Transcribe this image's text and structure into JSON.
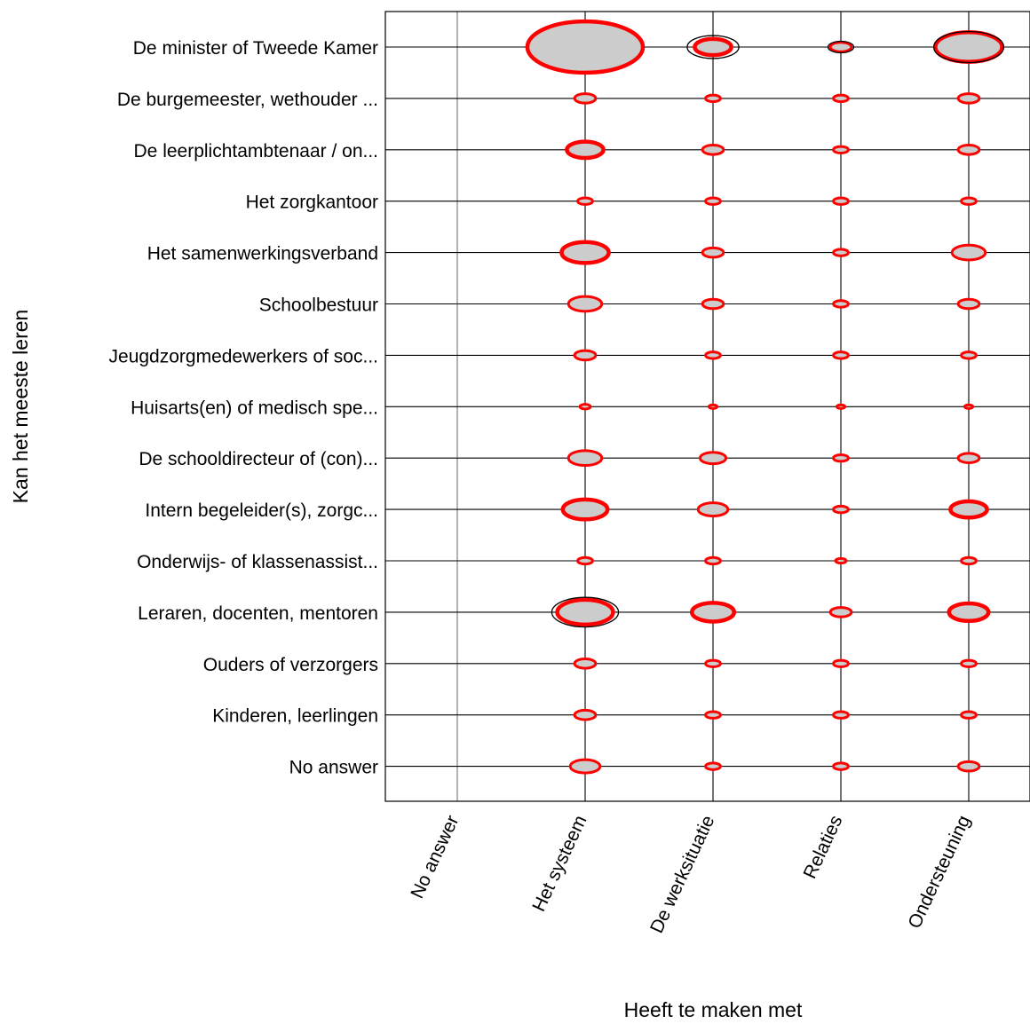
{
  "chart_data": {
    "type": "scatter",
    "xlabel": "Heeft te maken met",
    "ylabel": "Kan het meeste leren",
    "x_categories": [
      "No answer",
      "Het systeem",
      "De werksituatie",
      "Relaties",
      "Ondersteuning"
    ],
    "y_categories": [
      "De minister of Tweede Kamer",
      "De burgemeester, wethouder ...",
      "De leerplichtambtenaar / on...",
      "Het zorgkantoor",
      "Het samenwerkingsverband",
      "Schoolbestuur",
      "Jeugdzorgmedewerkers of soc...",
      "Huisarts(en) of medisch spe...",
      "De schooldirecteur of (con)...",
      "Intern begeleider(s), zorgc...",
      "Onderwijs- of klassenassist...",
      "Leraren, docenten, mentoren",
      "Ouders of verzorgers",
      "Kinderen, leerlingen",
      "No answer"
    ],
    "legend": "none",
    "grid": true,
    "colors": {
      "observed": "#ff0000",
      "expected": "#000000",
      "fill": "#cccccc"
    },
    "points": [
      {
        "x": "Het systeem",
        "y": "De minister of Tweede Kamer",
        "observed": 60,
        "expected": 45
      },
      {
        "x": "De werksituatie",
        "y": "De minister of Tweede Kamer",
        "observed": 6,
        "expected": 12
      },
      {
        "x": "Relaties",
        "y": "De minister of Tweede Kamer",
        "observed": 2,
        "expected": 3
      },
      {
        "x": "Ondersteuning",
        "y": "De minister of Tweede Kamer",
        "observed": 20,
        "expected": 22
      },
      {
        "x": "Het systeem",
        "y": "De burgemeester, wethouder ...",
        "observed": 2,
        "expected": 1
      },
      {
        "x": "De werksituatie",
        "y": "De burgemeester, wethouder ...",
        "observed": 1,
        "expected": 0.5
      },
      {
        "x": "Relaties",
        "y": "De burgemeester, wethouder ...",
        "observed": 1,
        "expected": 0.3
      },
      {
        "x": "Ondersteuning",
        "y": "De burgemeester, wethouder ...",
        "observed": 2,
        "expected": 1
      },
      {
        "x": "Het systeem",
        "y": "De leerplichtambtenaar / on...",
        "observed": 6,
        "expected": 5
      },
      {
        "x": "De werksituatie",
        "y": "De leerplichtambtenaar / on...",
        "observed": 2,
        "expected": 2
      },
      {
        "x": "Relaties",
        "y": "De leerplichtambtenaar / on...",
        "observed": 1,
        "expected": 0.5
      },
      {
        "x": "Ondersteuning",
        "y": "De leerplichtambtenaar / on...",
        "observed": 2,
        "expected": 2
      },
      {
        "x": "Het systeem",
        "y": "Het zorgkantoor",
        "observed": 1,
        "expected": 0.5
      },
      {
        "x": "De werksituatie",
        "y": "Het zorgkantoor",
        "observed": 1,
        "expected": 0.3
      },
      {
        "x": "Relaties",
        "y": "Het zorgkantoor",
        "observed": 1,
        "expected": 0.2
      },
      {
        "x": "Ondersteuning",
        "y": "Het zorgkantoor",
        "observed": 1,
        "expected": 0.5
      },
      {
        "x": "Het systeem",
        "y": "Het samenwerkingsverband",
        "observed": 10,
        "expected": 7
      },
      {
        "x": "De werksituatie",
        "y": "Het samenwerkingsverband",
        "observed": 2,
        "expected": 2
      },
      {
        "x": "Relaties",
        "y": "Het samenwerkingsverband",
        "observed": 1,
        "expected": 0.5
      },
      {
        "x": "Ondersteuning",
        "y": "Het samenwerkingsverband",
        "observed": 5,
        "expected": 4
      },
      {
        "x": "Het systeem",
        "y": "Schoolbestuur",
        "observed": 5,
        "expected": 4
      },
      {
        "x": "De werksituatie",
        "y": "Schoolbestuur",
        "observed": 2,
        "expected": 1
      },
      {
        "x": "Relaties",
        "y": "Schoolbestuur",
        "observed": 1,
        "expected": 0.3
      },
      {
        "x": "Ondersteuning",
        "y": "Schoolbestuur",
        "observed": 2,
        "expected": 2
      },
      {
        "x": "Het systeem",
        "y": "Jeugdzorgmedewerkers of soc...",
        "observed": 2,
        "expected": 1
      },
      {
        "x": "De werksituatie",
        "y": "Jeugdzorgmedewerkers of soc...",
        "observed": 1,
        "expected": 0.5
      },
      {
        "x": "Relaties",
        "y": "Jeugdzorgmedewerkers of soc...",
        "observed": 1,
        "expected": 0.3
      },
      {
        "x": "Ondersteuning",
        "y": "Jeugdzorgmedewerkers of soc...",
        "observed": 1,
        "expected": 0.5
      },
      {
        "x": "Het systeem",
        "y": "Huisarts(en) of medisch spe...",
        "observed": 0.5,
        "expected": 0.2
      },
      {
        "x": "De werksituatie",
        "y": "Huisarts(en) of medisch spe...",
        "observed": 0.3,
        "expected": 0.1
      },
      {
        "x": "Relaties",
        "y": "Huisarts(en) of medisch spe...",
        "observed": 0.3,
        "expected": 0.1
      },
      {
        "x": "Ondersteuning",
        "y": "Huisarts(en) of medisch spe...",
        "observed": 0.3,
        "expected": 0.1
      },
      {
        "x": "Het systeem",
        "y": "De schooldirecteur of (con)...",
        "observed": 5,
        "expected": 4
      },
      {
        "x": "De werksituatie",
        "y": "De schooldirecteur of (con)...",
        "observed": 3,
        "expected": 2
      },
      {
        "x": "Relaties",
        "y": "De schooldirecteur of (con)...",
        "observed": 1,
        "expected": 0.5
      },
      {
        "x": "Ondersteuning",
        "y": "De schooldirecteur of (con)...",
        "observed": 2,
        "expected": 2
      },
      {
        "x": "Het systeem",
        "y": "Intern begeleider(s), zorgc...",
        "observed": 9,
        "expected": 7
      },
      {
        "x": "De werksituatie",
        "y": "Intern begeleider(s), zorgc...",
        "observed": 4,
        "expected": 3
      },
      {
        "x": "Relaties",
        "y": "Intern begeleider(s), zorgc...",
        "observed": 1,
        "expected": 0.5
      },
      {
        "x": "Ondersteuning",
        "y": "Intern begeleider(s), zorgc...",
        "observed": 6,
        "expected": 4
      },
      {
        "x": "Het systeem",
        "y": "Onderwijs- of klassenassist...",
        "observed": 1,
        "expected": 0.5
      },
      {
        "x": "De werksituatie",
        "y": "Onderwijs- of klassenassist...",
        "observed": 1,
        "expected": 0.3
      },
      {
        "x": "Relaties",
        "y": "Onderwijs- of klassenassist...",
        "observed": 0.5,
        "expected": 0.2
      },
      {
        "x": "Ondersteuning",
        "y": "Onderwijs- of klassenassist...",
        "observed": 1,
        "expected": 0.5
      },
      {
        "x": "Het systeem",
        "y": "Leraren, docenten, mentoren",
        "observed": 14,
        "expected": 20
      },
      {
        "x": "De werksituatie",
        "y": "Leraren, docenten, mentoren",
        "observed": 8,
        "expected": 5
      },
      {
        "x": "Relaties",
        "y": "Leraren, docenten, mentoren",
        "observed": 2,
        "expected": 1
      },
      {
        "x": "Ondersteuning",
        "y": "Leraren, docenten, mentoren",
        "observed": 7,
        "expected": 7
      },
      {
        "x": "Het systeem",
        "y": "Ouders of verzorgers",
        "observed": 2,
        "expected": 2
      },
      {
        "x": "De werksituatie",
        "y": "Ouders of verzorgers",
        "observed": 1,
        "expected": 0.5
      },
      {
        "x": "Relaties",
        "y": "Ouders of verzorgers",
        "observed": 1,
        "expected": 0.3
      },
      {
        "x": "Ondersteuning",
        "y": "Ouders of verzorgers",
        "observed": 1,
        "expected": 0.8
      },
      {
        "x": "Het systeem",
        "y": "Kinderen, leerlingen",
        "observed": 2,
        "expected": 1
      },
      {
        "x": "De werksituatie",
        "y": "Kinderen, leerlingen",
        "observed": 1,
        "expected": 0.5
      },
      {
        "x": "Relaties",
        "y": "Kinderen, leerlingen",
        "observed": 1,
        "expected": 0.3
      },
      {
        "x": "Ondersteuning",
        "y": "Kinderen, leerlingen",
        "observed": 1,
        "expected": 0.8
      },
      {
        "x": "Het systeem",
        "y": "No answer",
        "observed": 4,
        "expected": 2
      },
      {
        "x": "De werksituatie",
        "y": "No answer",
        "observed": 1,
        "expected": 1
      },
      {
        "x": "Relaties",
        "y": "No answer",
        "observed": 1,
        "expected": 0.3
      },
      {
        "x": "Ondersteuning",
        "y": "No answer",
        "observed": 2,
        "expected": 1
      }
    ]
  }
}
